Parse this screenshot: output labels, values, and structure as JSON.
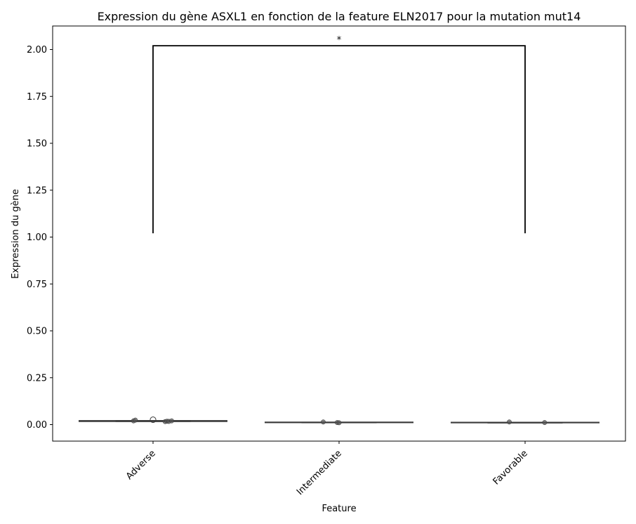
{
  "chart_data": {
    "type": "box",
    "title": "Expression du gène ASXL1 en fonction de la feature ELN2017 pour la mutation mut14",
    "xlabel": "Feature",
    "ylabel": "Expression du gène",
    "categories": [
      "Adverse",
      "Intermediate",
      "Favorable"
    ],
    "ylim": [
      -0.09,
      2.13
    ],
    "yticks": [
      "0.00",
      "0.25",
      "0.50",
      "0.75",
      "1.00",
      "1.25",
      "1.50",
      "1.75",
      "2.00"
    ],
    "ytick_values": [
      0,
      0.25,
      0.5,
      0.75,
      1.0,
      1.25,
      1.5,
      1.75,
      2.0
    ],
    "grid": false,
    "boxes": [
      {
        "category": "Adverse",
        "min": 0.016,
        "q1": 0.016,
        "median": 0.019,
        "q3": 0.022,
        "max": 0.022,
        "outliers": [
          0.026
        ]
      },
      {
        "category": "Intermediate",
        "min": 0.011,
        "q1": 0.011,
        "median": 0.012,
        "q3": 0.013,
        "max": 0.013,
        "outliers": []
      },
      {
        "category": "Favorable",
        "min": 0.01,
        "q1": 0.01,
        "median": 0.011,
        "q3": 0.012,
        "max": 0.012,
        "outliers": []
      }
    ],
    "points": [
      {
        "category": "Adverse",
        "jitter": -0.21,
        "y": 0.02
      },
      {
        "category": "Adverse",
        "jitter": -0.19,
        "y": 0.024
      },
      {
        "category": "Adverse",
        "jitter": 0.13,
        "y": 0.016
      },
      {
        "category": "Adverse",
        "jitter": 0.15,
        "y": 0.018
      },
      {
        "category": "Adverse",
        "jitter": 0.17,
        "y": 0.017
      },
      {
        "category": "Adverse",
        "jitter": 0.2,
        "y": 0.02
      },
      {
        "category": "Intermediate",
        "jitter": -0.17,
        "y": 0.014
      },
      {
        "category": "Intermediate",
        "jitter": -0.02,
        "y": 0.011
      },
      {
        "category": "Intermediate",
        "jitter": 0.0,
        "y": 0.01
      },
      {
        "category": "Favorable",
        "jitter": -0.17,
        "y": 0.014
      },
      {
        "category": "Favorable",
        "jitter": 0.21,
        "y": 0.011
      }
    ],
    "annotations": [
      {
        "type": "significance-bracket",
        "from": "Adverse",
        "to": "Favorable",
        "y_bottom": 1.02,
        "y_top": 2.02,
        "label": "*"
      }
    ],
    "colors": {
      "box": "#3a3a3a",
      "points": "#555555",
      "bracket": "#000000"
    }
  }
}
